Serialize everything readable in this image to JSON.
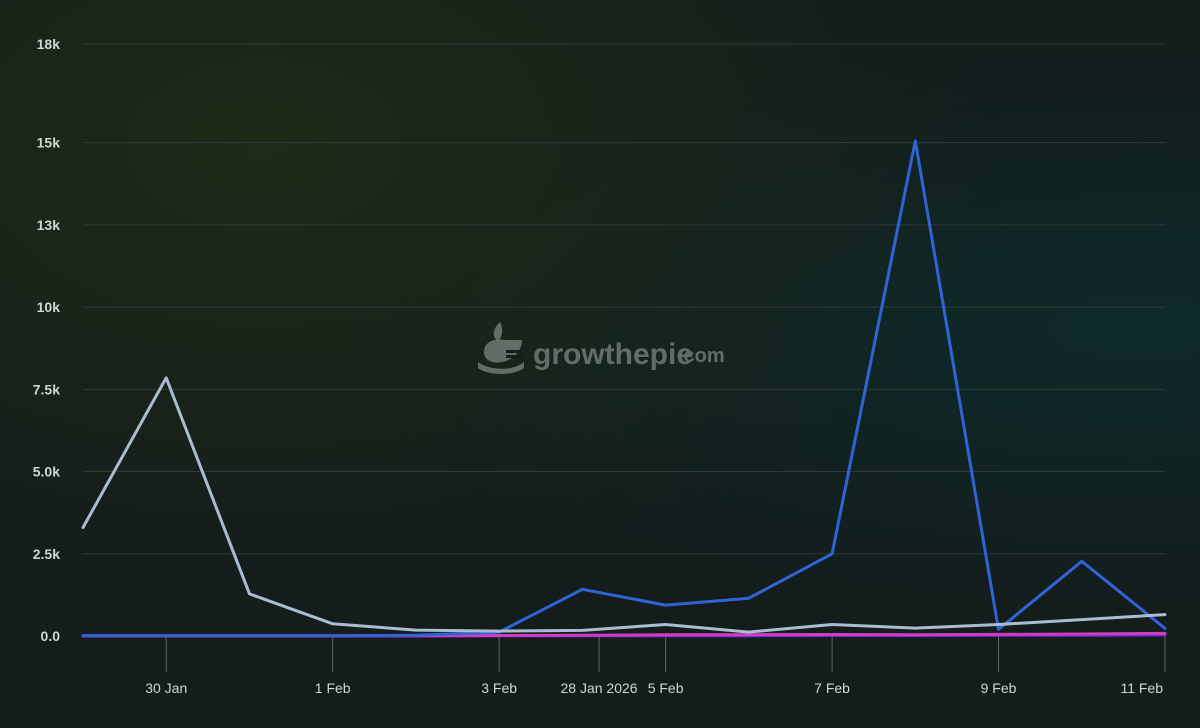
{
  "chart_data": {
    "type": "line",
    "title": "",
    "xlabel": "",
    "ylabel": "",
    "ylim": [
      0,
      18000
    ],
    "yticks": [
      {
        "value": 0,
        "label": "0.0"
      },
      {
        "value": 2500,
        "label": "2.5k"
      },
      {
        "value": 5000,
        "label": "5.0k"
      },
      {
        "value": 7500,
        "label": "7.5k"
      },
      {
        "value": 10000,
        "label": "10k"
      },
      {
        "value": 12500,
        "label": "13k"
      },
      {
        "value": 15000,
        "label": "15k"
      },
      {
        "value": 18000,
        "label": "18k"
      }
    ],
    "x": [
      "29 Jan",
      "30 Jan",
      "31 Jan",
      "1 Feb",
      "2 Feb",
      "3 Feb",
      "4 Feb",
      "5 Feb",
      "6 Feb",
      "7 Feb",
      "8 Feb",
      "9 Feb",
      "10 Feb",
      "11 Feb"
    ],
    "xticks": [
      {
        "index": 1,
        "label": "30 Jan"
      },
      {
        "index": 3,
        "label": "1 Feb"
      },
      {
        "index": 5,
        "label": "3 Feb"
      },
      {
        "index": 6.2,
        "label": "28 Jan 2026"
      },
      {
        "index": 7,
        "label": "5 Feb"
      },
      {
        "index": 9,
        "label": "7 Feb"
      },
      {
        "index": 11,
        "label": "9 Feb"
      },
      {
        "index": 13,
        "label": "11 Feb"
      }
    ],
    "series": [
      {
        "name": "series-gray",
        "color": "#a9bcd0",
        "values": [
          3300,
          7850,
          1280,
          370,
          180,
          150,
          170,
          350,
          120,
          350,
          240,
          350,
          500,
          650
        ]
      },
      {
        "name": "series-blue",
        "color": "#2f63d6",
        "values": [
          10,
          10,
          10,
          10,
          20,
          120,
          1420,
          940,
          1150,
          2500,
          15050,
          200,
          2270,
          230
        ]
      },
      {
        "name": "series-magenta",
        "color": "#d13bc4",
        "values": [
          5,
          5,
          5,
          5,
          10,
          15,
          25,
          35,
          40,
          45,
          40,
          50,
          60,
          80
        ]
      },
      {
        "name": "series-purple",
        "color": "#6a2fd0",
        "values": [
          0,
          0,
          0,
          0,
          0,
          5,
          10,
          10,
          10,
          15,
          15,
          20,
          25,
          30
        ]
      }
    ]
  },
  "watermark": {
    "brand": "growthepie",
    "suffix": ".com"
  }
}
